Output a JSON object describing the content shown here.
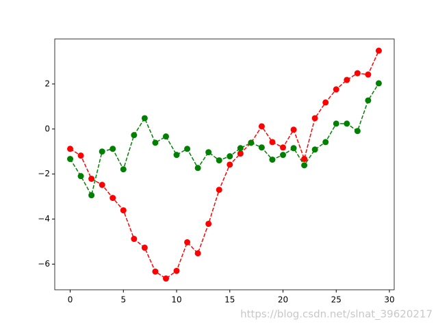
{
  "chart_data": {
    "type": "line",
    "x": [
      0,
      1,
      2,
      3,
      4,
      5,
      6,
      7,
      8,
      9,
      10,
      11,
      12,
      13,
      14,
      15,
      16,
      17,
      18,
      19,
      20,
      21,
      22,
      23,
      24,
      25,
      26,
      27,
      28,
      29
    ],
    "series": [
      {
        "color": "#ff0000",
        "values": [
          -0.88,
          -1.18,
          -2.21,
          -2.48,
          -3.06,
          -3.61,
          -4.88,
          -5.27,
          -6.33,
          -6.64,
          -6.3,
          -5.03,
          -5.52,
          -4.21,
          -2.7,
          -1.58,
          -1.09,
          -0.61,
          0.12,
          -0.58,
          -0.82,
          -0.03,
          -1.33,
          0.48,
          1.18,
          1.76,
          2.18,
          2.48,
          2.42,
          3.48
        ]
      },
      {
        "color": "#008000",
        "values": [
          -1.33,
          -2.09,
          -2.94,
          -1.0,
          -0.88,
          -1.79,
          -0.27,
          0.48,
          -0.61,
          -0.33,
          -1.15,
          -0.88,
          -1.73,
          -1.03,
          -1.39,
          -1.21,
          -0.85,
          -0.61,
          -0.82,
          -1.36,
          -1.15,
          -0.85,
          -1.61,
          -0.91,
          -0.58,
          0.24,
          0.24,
          -0.09,
          1.27,
          2.03
        ]
      }
    ],
    "xlim": [
      -1.45,
      30.45
    ],
    "xticks": [
      0,
      5,
      10,
      15,
      20,
      25,
      30
    ],
    "ylim": [
      -7.14,
      4.0
    ],
    "yticks": [
      {
        "value": -6,
        "label": "−6"
      },
      {
        "value": -4,
        "label": "−4"
      },
      {
        "value": -2,
        "label": "−2"
      },
      0,
      2
    ],
    "line_style": "dashed",
    "marker": "circle",
    "watermark": "https://blog.csdn.net/slnat_39620217"
  }
}
